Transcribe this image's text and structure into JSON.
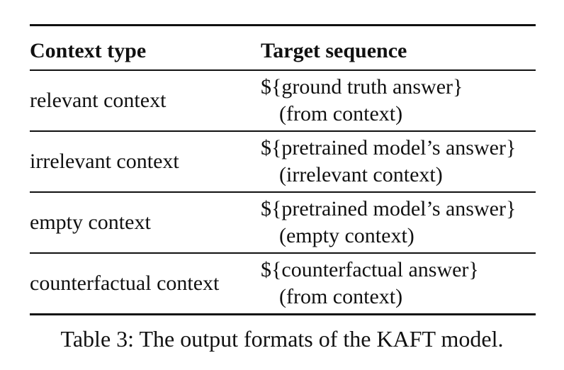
{
  "table": {
    "header": {
      "context_type": "Context type",
      "target_sequence": "Target sequence"
    },
    "rows": [
      {
        "context_type": "relevant context",
        "target_line1": "${ground truth answer}",
        "target_line2": "(from context)"
      },
      {
        "context_type": "irrelevant context",
        "target_line1": "${pretrained model’s answer}",
        "target_line2": "(irrelevant context)"
      },
      {
        "context_type": "empty context",
        "target_line1": "${pretrained model’s answer}",
        "target_line2": "(empty context)"
      },
      {
        "context_type": "counterfactual context",
        "target_line1": "${counterfactual answer}",
        "target_line2": "(from context)"
      }
    ]
  },
  "caption": "Table 3: The output formats of the KAFT model."
}
